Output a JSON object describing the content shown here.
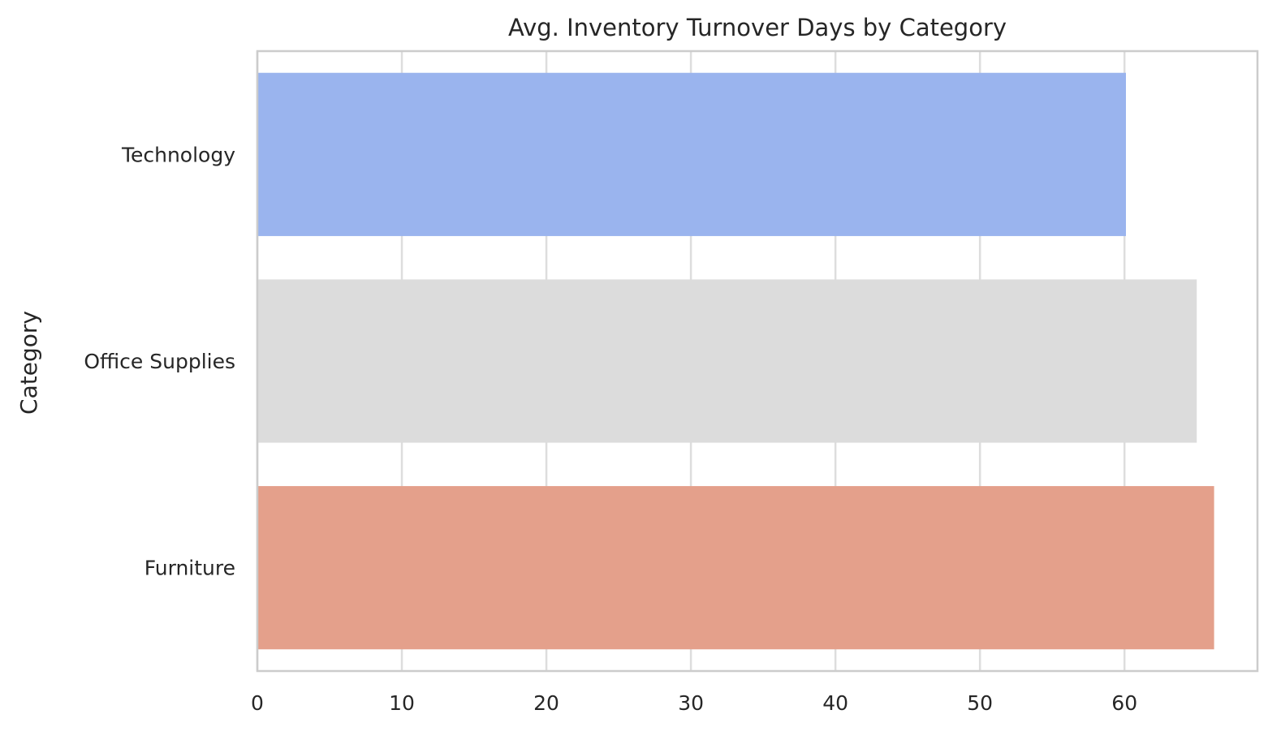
{
  "chart_data": {
    "type": "bar",
    "orientation": "horizontal",
    "title": "Avg. Inventory Turnover Days by Category",
    "xlabel": "",
    "ylabel": "Category",
    "categories": [
      "Technology",
      "Office Supplies",
      "Furniture"
    ],
    "values": [
      60.1,
      65.0,
      66.2
    ],
    "colors": [
      "#9ab4ee",
      "#dcdcdc",
      "#e4a08b"
    ],
    "xlim": [
      0,
      69.2
    ],
    "xticks": [
      0,
      10,
      20,
      30,
      40,
      50,
      60
    ],
    "grid": true,
    "grid_color": "#dddddd",
    "spine_color": "#cccccc"
  }
}
